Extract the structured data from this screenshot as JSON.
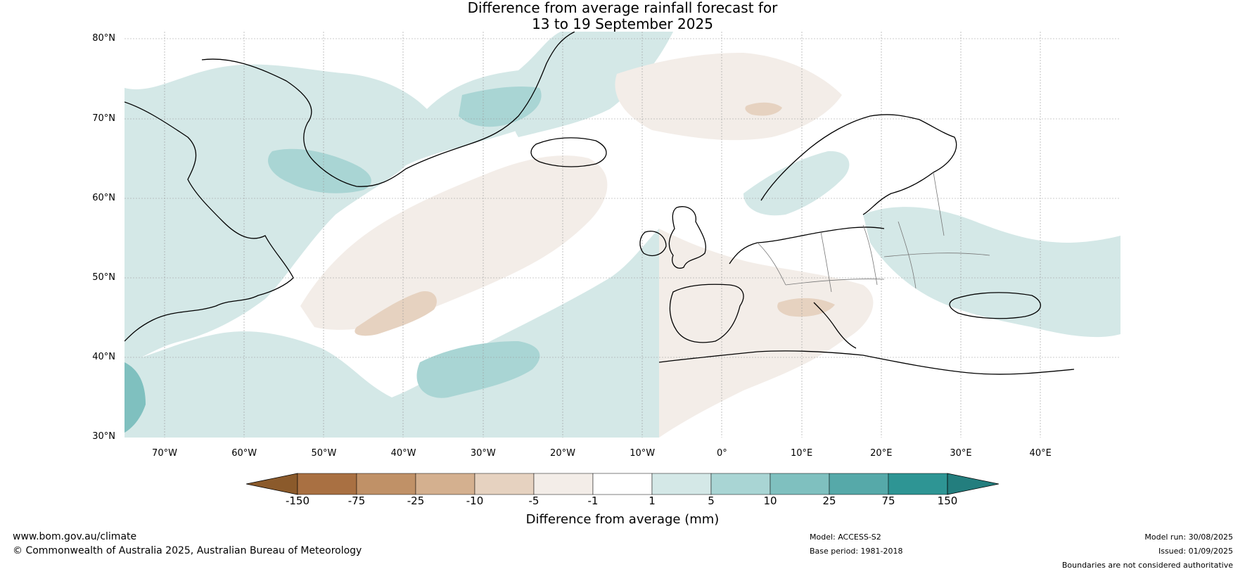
{
  "title": {
    "line1": "Difference from average rainfall forecast for",
    "line2": "13 to 19 September 2025"
  },
  "map": {
    "lat_labels": [
      "80°N",
      "70°N",
      "60°N",
      "50°N",
      "40°N",
      "30°N"
    ],
    "lon_labels": [
      "70°W",
      "60°W",
      "50°W",
      "40°W",
      "30°W",
      "20°W",
      "10°W",
      "0°",
      "10°E",
      "20°E",
      "30°E",
      "40°E"
    ],
    "lat_range": [
      30,
      81
    ],
    "lon_range": [
      -75,
      50
    ]
  },
  "colorbar": {
    "title": "Difference from average (mm)",
    "ticks": [
      "-150",
      "-75",
      "-25",
      "-10",
      "-5",
      "-1",
      "1",
      "5",
      "10",
      "25",
      "75",
      "150"
    ],
    "colors": [
      "#8b5a2b",
      "#a97042",
      "#c09167",
      "#d4b08f",
      "#e6d2c0",
      "#f3ede8",
      "#ffffff",
      "#d4e8e7",
      "#a9d5d4",
      "#7fc0bf",
      "#56a9a9",
      "#2e9594",
      "#237e7e"
    ]
  },
  "footer": {
    "website": "www.bom.gov.au/climate",
    "copyright": "© Commonwealth of Australia 2025, Australian Bureau of Meteorology",
    "model": "Model: ACCESS-S2",
    "base_period": "Base period: 1981-2018",
    "model_run": "Model run: 30/08/2025",
    "issued": "Issued: 01/09/2025",
    "disclaimer": "Boundaries are not considered authoritative"
  }
}
